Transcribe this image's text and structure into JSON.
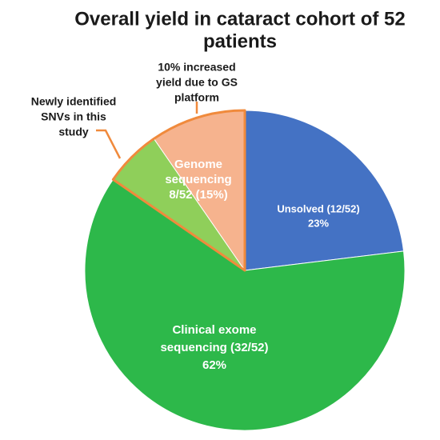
{
  "chart_data": {
    "type": "pie",
    "title": [
      "Overall yield in cataract cohort of 52",
      "patients"
    ],
    "slices": [
      {
        "label_lines": [
          "Unsolved (12/52)",
          "23%"
        ],
        "value": 12,
        "color": "#4472c4"
      },
      {
        "label_lines": [
          "Clinical exome",
          "sequencing (32/52)",
          "62%"
        ],
        "value": 32,
        "color": "#2db84a"
      },
      {
        "label_lines": [],
        "value": 3,
        "color": "#8fcf5a"
      },
      {
        "label_lines": [
          "Genome",
          "sequencing",
          "8/52 (15%)"
        ],
        "value": 5,
        "color": "#f6b38e"
      }
    ],
    "annotations": [
      {
        "lines": [
          "10% increased",
          "yield due to GS",
          "platform"
        ],
        "target_slice": 3
      },
      {
        "lines": [
          "Newly identified",
          "SNVs in this",
          "study"
        ],
        "target_slice": 2
      }
    ],
    "outline_color": "#f08a3c"
  }
}
